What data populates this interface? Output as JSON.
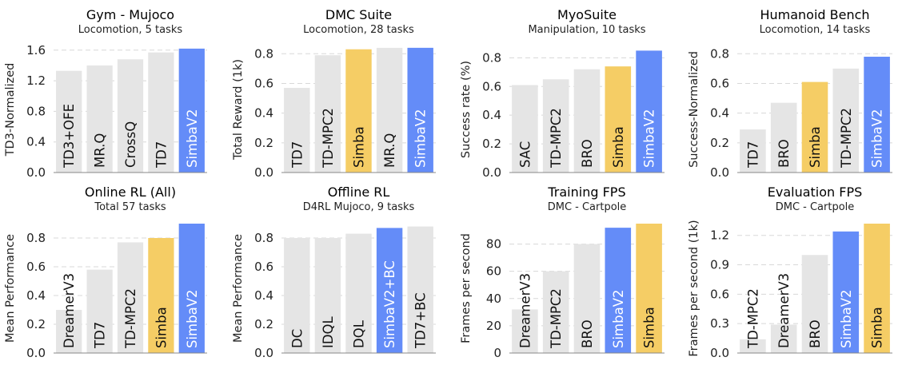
{
  "colors": {
    "gray": "#E5E5E5",
    "yellow": "#F5CD65",
    "blue": "#648CF8",
    "grid": "#D8D8D8",
    "axis": "#888888"
  },
  "chart_data": [
    {
      "type": "bar",
      "title": "Gym - Mujoco",
      "subtitle": "Locomotion, 5 tasks",
      "ylabel": "TD3-Normalized",
      "ylim": [
        0,
        1.65
      ],
      "yticks": [
        0.0,
        0.4,
        0.8,
        1.2,
        1.6
      ],
      "tick_decimals": 1,
      "categories": [
        "TD3+OFE",
        "MR.Q",
        "CrossQ",
        "TD7",
        "SimbaV2"
      ],
      "values": [
        1.33,
        1.4,
        1.48,
        1.57,
        1.62
      ],
      "bar_colors": [
        "gray",
        "gray",
        "gray",
        "gray",
        "blue"
      ]
    },
    {
      "type": "bar",
      "title": "DMC Suite",
      "subtitle": "Locomotion, 28 tasks",
      "ylabel": "Total Reward (1k)",
      "ylim": [
        0,
        0.85
      ],
      "yticks": [
        0.0,
        0.2,
        0.4,
        0.6,
        0.8
      ],
      "tick_decimals": 1,
      "categories": [
        "TD7",
        "TD-MPC2",
        "Simba",
        "MR.Q",
        "SimbaV2"
      ],
      "values": [
        0.57,
        0.79,
        0.83,
        0.84,
        0.84
      ],
      "bar_colors": [
        "gray",
        "gray",
        "yellow",
        "gray",
        "blue"
      ]
    },
    {
      "type": "bar",
      "title": "MyoSuite",
      "subtitle": "Manipulation, 10 tasks",
      "ylabel": "Success rate (%)",
      "ylim": [
        0,
        0.88
      ],
      "yticks": [
        0.0,
        0.2,
        0.4,
        0.6,
        0.8
      ],
      "tick_decimals": 1,
      "categories": [
        "SAC",
        "TD-MPC2",
        "BRO",
        "Simba",
        "SimbaV2"
      ],
      "values": [
        0.61,
        0.65,
        0.72,
        0.74,
        0.85
      ],
      "bar_colors": [
        "gray",
        "gray",
        "gray",
        "yellow",
        "blue"
      ]
    },
    {
      "type": "bar",
      "title": "Humanoid Bench",
      "subtitle": "Locomotion, 14 tasks",
      "ylabel": "Success-Normalized",
      "ylim": [
        0,
        0.85
      ],
      "yticks": [
        0.0,
        0.2,
        0.4,
        0.6,
        0.8
      ],
      "tick_decimals": 1,
      "categories": [
        "TD7",
        "BRO",
        "Simba",
        "TD-MPC2",
        "SimbaV2"
      ],
      "values": [
        0.29,
        0.47,
        0.61,
        0.7,
        0.78
      ],
      "bar_colors": [
        "gray",
        "gray",
        "yellow",
        "gray",
        "blue"
      ]
    },
    {
      "type": "bar",
      "title": "Online RL (All)",
      "subtitle": "Total 57 tasks",
      "ylabel": "Mean Performance",
      "ylim": [
        0,
        0.9
      ],
      "yticks": [
        0.0,
        0.2,
        0.4,
        0.6,
        0.8
      ],
      "tick_decimals": 1,
      "categories": [
        "DreamerV3",
        "TD7",
        "TD-MPC2",
        "Simba",
        "SimbaV2"
      ],
      "values": [
        0.3,
        0.58,
        0.77,
        0.8,
        0.9
      ],
      "bar_colors": [
        "gray",
        "gray",
        "gray",
        "yellow",
        "blue"
      ]
    },
    {
      "type": "bar",
      "title": "Offline RL",
      "subtitle": "D4RL Mujoco, 9 tasks",
      "ylabel": "Mean Performance",
      "ylim": [
        0,
        0.9
      ],
      "yticks": [
        0.0,
        0.2,
        0.4,
        0.6,
        0.8
      ],
      "tick_decimals": 1,
      "categories": [
        "DC",
        "IDQL",
        "DQL",
        "SimbaV2+BC",
        "TD7+BC"
      ],
      "values": [
        0.8,
        0.8,
        0.83,
        0.87,
        0.88
      ],
      "bar_colors": [
        "gray",
        "gray",
        "gray",
        "blue",
        "gray"
      ]
    },
    {
      "type": "bar",
      "title": "Training FPS",
      "subtitle": "DMC - Cartpole",
      "ylabel": "Frames per second",
      "ylim": [
        0,
        95
      ],
      "yticks": [
        0,
        20,
        40,
        60,
        80
      ],
      "tick_decimals": 0,
      "categories": [
        "DreamerV3",
        "TD-MPC2",
        "BRO",
        "SimbaV2",
        "Simba"
      ],
      "values": [
        32,
        60,
        80,
        92,
        95
      ],
      "bar_colors": [
        "gray",
        "gray",
        "gray",
        "blue",
        "yellow"
      ]
    },
    {
      "type": "bar",
      "title": "Evaluation FPS",
      "subtitle": "DMC - Cartpole",
      "ylabel": "Frames per second (1k)",
      "ylim": [
        0,
        1.32
      ],
      "yticks": [
        0.0,
        0.3,
        0.6,
        0.9,
        1.2
      ],
      "tick_decimals": 1,
      "categories": [
        "TD-MPC2",
        "DreamerV3",
        "BRO",
        "SimbaV2",
        "Simba"
      ],
      "values": [
        0.14,
        0.29,
        1.0,
        1.24,
        1.32
      ],
      "bar_colors": [
        "gray",
        "gray",
        "gray",
        "blue",
        "yellow"
      ]
    }
  ]
}
